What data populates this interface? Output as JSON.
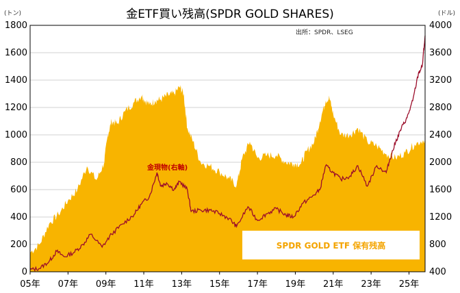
{
  "chart_data": {
    "type": "area",
    "title": "金ETF買い残高(SPDR GOLD SHARES)",
    "source": "出所：SPDR、LSEG",
    "left_unit": "(トン)",
    "right_unit": "(ドル)",
    "x_tick_labels": [
      "05年",
      "07年",
      "09年",
      "11年",
      "13年",
      "15年",
      "17年",
      "19年",
      "21年",
      "23年",
      "25年"
    ],
    "x_tick_years": [
      2005,
      2007,
      2009,
      2011,
      2013,
      2015,
      2017,
      2019,
      2021,
      2023,
      2025
    ],
    "xlim": [
      2005.0,
      2025.85
    ],
    "ylim_left": [
      0,
      1800
    ],
    "ylim_right": [
      400,
      4000
    ],
    "yticks_left": [
      0,
      200,
      400,
      600,
      800,
      1000,
      1200,
      1400,
      1600,
      1800
    ],
    "yticks_right": [
      400,
      800,
      1200,
      1600,
      2000,
      2400,
      2800,
      3200,
      3600,
      4000
    ],
    "annotation": "金現物(右軸)",
    "series": [
      {
        "name": "SPDR GOLD ETF 保有残高",
        "axis": "left",
        "kind": "area",
        "color": "#f8b400",
        "x": [
          2005.0,
          2005.5,
          2006.0,
          2006.5,
          2007.0,
          2007.5,
          2008.0,
          2008.5,
          2008.9,
          2009.1,
          2009.3,
          2009.6,
          2010.0,
          2010.5,
          2010.9,
          2011.0,
          2011.3,
          2011.6,
          2011.9,
          2012.3,
          2012.6,
          2012.9,
          2013.1,
          2013.3,
          2013.6,
          2014.0,
          2014.5,
          2015.0,
          2015.5,
          2015.9,
          2016.2,
          2016.6,
          2017.0,
          2017.5,
          2018.0,
          2018.5,
          2018.9,
          2019.3,
          2019.6,
          2020.0,
          2020.3,
          2020.6,
          2020.8,
          2021.0,
          2021.4,
          2021.9,
          2022.3,
          2022.8,
          2023.3,
          2023.8,
          2024.3,
          2024.8,
          2025.3,
          2025.85
        ],
        "y": [
          140,
          200,
          350,
          420,
          520,
          600,
          770,
          670,
          790,
          1000,
          1100,
          1080,
          1170,
          1240,
          1290,
          1260,
          1220,
          1250,
          1260,
          1290,
          1300,
          1350,
          1300,
          1050,
          950,
          800,
          770,
          730,
          680,
          630,
          830,
          950,
          830,
          850,
          850,
          800,
          790,
          790,
          880,
          950,
          1100,
          1250,
          1270,
          1150,
          1000,
          1000,
          1050,
          950,
          920,
          860,
          830,
          870,
          930,
          970
        ]
      },
      {
        "name": "金現物(右軸)",
        "axis": "right",
        "kind": "line",
        "color": "#9b0d2a",
        "x": [
          2005.0,
          2005.5,
          2006.0,
          2006.4,
          2006.8,
          2007.3,
          2007.8,
          2008.2,
          2008.8,
          2009.3,
          2009.9,
          2010.5,
          2010.9,
          2011.3,
          2011.7,
          2011.9,
          2012.2,
          2012.6,
          2012.9,
          2013.3,
          2013.5,
          2014.0,
          2014.5,
          2015.0,
          2015.5,
          2015.9,
          2016.5,
          2017.0,
          2017.5,
          2018.0,
          2018.5,
          2018.9,
          2019.4,
          2019.9,
          2020.3,
          2020.6,
          2021.0,
          2021.4,
          2021.9,
          2022.3,
          2022.8,
          2023.3,
          2023.8,
          2024.0,
          2024.3,
          2024.6,
          2024.9,
          2025.2,
          2025.5,
          2025.7,
          2025.85
        ],
        "y": [
          430,
          450,
          550,
          700,
          620,
          680,
          800,
          950,
          760,
          950,
          1100,
          1240,
          1400,
          1500,
          1850,
          1650,
          1700,
          1600,
          1720,
          1600,
          1280,
          1300,
          1300,
          1250,
          1180,
          1060,
          1350,
          1150,
          1250,
          1320,
          1230,
          1200,
          1400,
          1500,
          1600,
          1950,
          1850,
          1750,
          1800,
          1950,
          1650,
          1950,
          1850,
          2050,
          2300,
          2500,
          2650,
          2900,
          3300,
          3400,
          3850
        ]
      }
    ]
  }
}
